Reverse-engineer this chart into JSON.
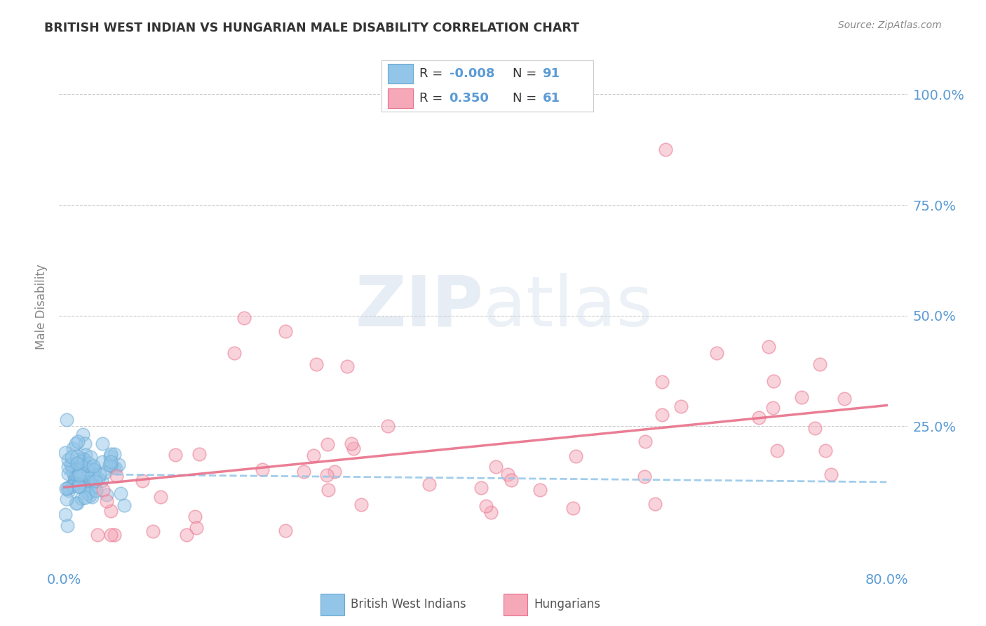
{
  "title": "BRITISH WEST INDIAN VS HUNGARIAN MALE DISABILITY CORRELATION CHART",
  "source": "Source: ZipAtlas.com",
  "ylabel": "Male Disability",
  "ytick_labels": [
    "100.0%",
    "75.0%",
    "50.0%",
    "25.0%"
  ],
  "ytick_values": [
    1.0,
    0.75,
    0.5,
    0.25
  ],
  "xlim": [
    -0.005,
    0.82
  ],
  "ylim": [
    -0.06,
    1.1
  ],
  "watermark_zip": "ZIP",
  "watermark_atlas": "atlas",
  "color_blue": "#92C5E8",
  "color_blue_edge": "#6aaad4",
  "color_pink": "#F4A8B8",
  "color_pink_edge": "#E8708A",
  "line_blue_color": "#92C5E8",
  "line_pink_color": "#E8708A",
  "label_blue": "British West Indians",
  "label_pink": "Hungarians",
  "axis_color": "#5B9BD5",
  "grid_color": "#cccccc",
  "title_color": "#333333",
  "source_color": "#888888",
  "ylabel_color": "#888888",
  "blue_n": 91,
  "pink_n": 61,
  "blue_r": -0.008,
  "pink_r": 0.35
}
